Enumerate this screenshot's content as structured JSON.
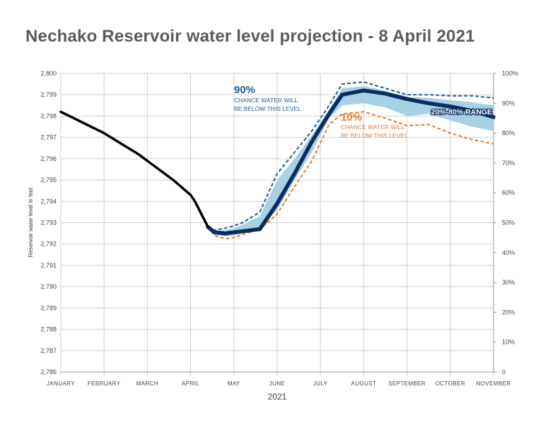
{
  "title": "Nechako Reservoir water level projection - 8 April 2021",
  "chart_data": {
    "type": "line",
    "title": "Nechako Reservoir water level projection - 8 April 2021",
    "xlabel": "2021",
    "ylabel": "Reservoir water level in feet",
    "ylim": [
      2786,
      2800
    ],
    "y_ticks": [
      "2,800",
      "2,799",
      "2,798",
      "2,797",
      "2,796",
      "2,795",
      "2,794",
      "2,793",
      "2,792",
      "2,791",
      "2,790",
      "2,789",
      "2,788",
      "2,787",
      "2,786"
    ],
    "y2_ticks": [
      "100%",
      "90%",
      "80%",
      "70%",
      "60%",
      "50%",
      "40%",
      "30%",
      "20%",
      "10%",
      "0"
    ],
    "months": [
      "JANUARY",
      "FEBRUARY",
      "MARCH",
      "APRIL",
      "MAY",
      "JUNE",
      "JULY",
      "AUGUST",
      "SEPTEMBER",
      "OCTOBER",
      "NOVEMBER"
    ],
    "grid": true,
    "colors": {
      "observed": "#000000",
      "median": "#0a2d5e",
      "p90": "#1f5f96",
      "p10": "#e57c33",
      "band": "#a8d1e6"
    },
    "series": [
      {
        "name": "observed",
        "x": [
          0.0,
          0.3,
          0.6,
          1.0,
          1.4,
          1.8,
          2.2,
          2.6,
          3.0,
          3.1,
          3.25,
          3.4
        ],
        "values": [
          2798.2,
          2797.9,
          2797.6,
          2797.2,
          2796.7,
          2796.2,
          2795.6,
          2795.0,
          2794.3,
          2794.0,
          2793.4,
          2792.8
        ]
      },
      {
        "name": "median",
        "x": [
          3.4,
          3.55,
          3.8,
          4.0,
          4.2,
          4.6,
          5.0,
          5.4,
          5.8,
          6.2,
          6.5,
          7.0,
          7.5,
          8.0,
          8.5,
          9.0,
          9.5,
          10.0
        ],
        "values": [
          2792.8,
          2792.55,
          2792.5,
          2792.55,
          2792.6,
          2792.7,
          2793.9,
          2795.3,
          2796.8,
          2798.1,
          2799.0,
          2799.2,
          2799.05,
          2798.8,
          2798.6,
          2798.45,
          2798.25,
          2797.95
        ]
      },
      {
        "name": "90%",
        "x": [
          3.4,
          3.55,
          3.8,
          4.0,
          4.2,
          4.6,
          5.0,
          5.4,
          5.8,
          6.2,
          6.5,
          7.0,
          7.5,
          8.0,
          8.5,
          9.0,
          9.5,
          10.0
        ],
        "values": [
          2792.8,
          2792.65,
          2792.75,
          2792.85,
          2793.0,
          2793.5,
          2795.3,
          2796.3,
          2797.3,
          2798.5,
          2799.5,
          2799.6,
          2799.3,
          2799.0,
          2799.0,
          2798.95,
          2798.95,
          2798.85
        ]
      },
      {
        "name": "10%",
        "x": [
          3.4,
          3.55,
          3.8,
          4.0,
          4.2,
          4.6,
          5.0,
          5.4,
          5.8,
          6.2,
          6.5,
          7.0,
          7.5,
          8.0,
          8.5,
          9.0,
          9.5,
          10.0
        ],
        "values": [
          2792.8,
          2792.4,
          2792.25,
          2792.3,
          2792.45,
          2792.7,
          2793.4,
          2794.7,
          2795.9,
          2797.6,
          2798.1,
          2798.2,
          2797.9,
          2797.55,
          2797.6,
          2797.2,
          2796.9,
          2796.7
        ]
      },
      {
        "name": "20%-80%",
        "x": [
          3.4,
          3.55,
          3.8,
          4.0,
          4.2,
          4.6,
          5.0,
          5.4,
          5.8,
          6.2,
          6.5,
          7.0,
          7.5,
          8.0,
          8.5,
          9.0,
          9.5,
          10.0
        ],
        "upper": [
          2792.8,
          2792.6,
          2792.65,
          2792.75,
          2792.9,
          2793.3,
          2795.0,
          2796.0,
          2797.1,
          2798.3,
          2799.3,
          2799.4,
          2799.2,
          2798.9,
          2798.85,
          2798.75,
          2798.65,
          2798.5
        ],
        "lower": [
          2792.8,
          2792.45,
          2792.35,
          2792.4,
          2792.5,
          2792.75,
          2793.6,
          2795.0,
          2796.3,
          2797.9,
          2798.5,
          2798.6,
          2798.4,
          2798.0,
          2798.1,
          2797.8,
          2797.5,
          2797.3
        ]
      }
    ],
    "annotations": {
      "p90_big": "90%",
      "p90_text": [
        "CHANCE WATER WILL",
        "BE BELOW THIS LEVEL"
      ],
      "p10_big": "10%",
      "p10_text": [
        "CHANCE WATER WILL",
        "BE BELOW THIS LEVEL"
      ],
      "range": "20%-80% RANGE"
    }
  }
}
